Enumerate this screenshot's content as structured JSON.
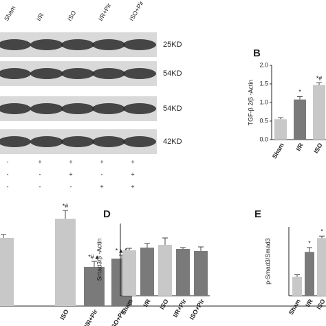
{
  "blot": {
    "lanes": [
      "Sham",
      "I/R",
      "ISO",
      "I/R+Pir",
      "ISO+Pir"
    ],
    "bands": [
      "25KD",
      "54KD",
      "54KD",
      "42KD"
    ],
    "treatments": [
      [
        "-",
        "+",
        "+",
        "+",
        "+"
      ],
      [
        "-",
        "-",
        "+",
        "-",
        "+"
      ],
      [
        "-",
        "-",
        "-",
        "+",
        "+"
      ]
    ]
  },
  "chart_data": [
    {
      "type": "bar",
      "panel": "B",
      "ylabel": "TGF-β 2/β -Actin",
      "categories": [
        "Sham",
        "I/R",
        "ISO"
      ],
      "values": [
        0.55,
        1.08,
        1.47
      ],
      "errors": [
        0.04,
        0.08,
        0.06
      ],
      "colors": [
        "#c8c8c8",
        "#7a7a7a",
        "#c8c8c8"
      ],
      "annotations": [
        null,
        "*",
        "*#"
      ],
      "ylim": [
        0,
        2
      ],
      "yticks": [
        {
          "value": 0,
          "label": "0.0"
        },
        {
          "value": 0.5,
          "label": "0.5"
        },
        {
          "value": 1,
          "label": "1.0"
        },
        {
          "value": 1.5,
          "label": "1.5"
        },
        {
          "value": 2,
          "label": "2.0"
        }
      ]
    },
    {
      "type": "bar",
      "panel": "C",
      "categories": [
        null,
        "ISO",
        "I/R+Pir",
        "ISO+Pir"
      ],
      "values": [
        0.99,
        1.27,
        0.57,
        0.69
      ],
      "errors": [
        0.05,
        0.12,
        0.08,
        0.05
      ],
      "colors": [
        "#c8c8c8",
        "#c8c8c8",
        "#7a7a7a",
        "#7a7a7a"
      ],
      "annotations": [
        null,
        "*#",
        "*#▲",
        "*▲Δ"
      ]
    },
    {
      "type": "bar",
      "panel": "D",
      "ylabel": "Smad3/β -Actin",
      "categories": [
        "Sham",
        "I/R",
        "ISO",
        "I/R+Pir",
        "ISO+Pir"
      ],
      "values": [
        0.66,
        0.7,
        0.74,
        0.68,
        0.65
      ],
      "errors": [
        0.03,
        0.06,
        0.1,
        0.02,
        0.06
      ],
      "colors": [
        "#c8c8c8",
        "#7a7a7a",
        "#c8c8c8",
        "#7a7a7a",
        "#7a7a7a"
      ]
    },
    {
      "type": "bar",
      "panel": "E",
      "ylabel": "p-Smad3/Smad3",
      "categories": [
        "Sham",
        "I/R",
        "ISO"
      ],
      "values": [
        1.1,
        2.55,
        3.35
      ],
      "errors": [
        0.12,
        0.25,
        0.12
      ],
      "colors": [
        "#c8c8c8",
        "#7a7a7a",
        "#c8c8c8"
      ],
      "annotations": [
        null,
        "*",
        "*"
      ],
      "ylim": [
        0,
        4
      ]
    }
  ]
}
